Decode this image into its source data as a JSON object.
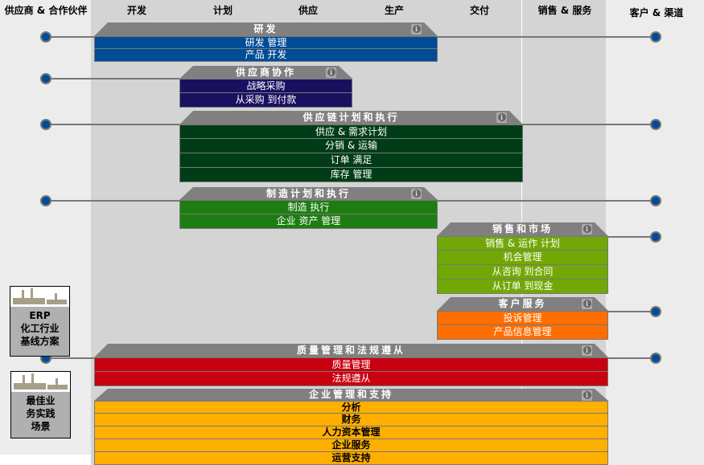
{
  "columns": [
    "供应商 & 合作伙伴",
    "开发",
    "计划",
    "供应",
    "生产",
    "交付",
    "销售 & 服务",
    "客户 & 渠道"
  ],
  "blocks": [
    {
      "title": "研发",
      "color": "#004c97",
      "text_color": "#ffffff",
      "rows": [
        "研发 管理",
        "产品 开发"
      ]
    },
    {
      "title": "供应商协作",
      "color": "#1a1060",
      "text_color": "#ffffff",
      "rows": [
        "战略采购",
        "从采购 到付款"
      ]
    },
    {
      "title": "供应链计划和执行",
      "color": "#003d17",
      "text_color": "#ffffff",
      "rows": [
        "供应 & 需求计划",
        "分销 & 运输",
        "订单 满足",
        "库存 管理"
      ]
    },
    {
      "title": "制造计划和执行",
      "color": "#1e7d12",
      "text_color": "#ffffff",
      "rows": [
        "制造 执行",
        "企业 资产 管理"
      ]
    },
    {
      "title": "销售和市场",
      "color": "#72a805",
      "text_color": "#ffffff",
      "rows": [
        "销售 & 运作 计划",
        "机会管理",
        "从咨询 到合同",
        "从订单 到现金"
      ]
    },
    {
      "title": "客户服务",
      "color": "#ff6e00",
      "text_color": "#ffffff",
      "rows": [
        "投诉管理",
        "产品信息管理"
      ]
    },
    {
      "title": "质量管理和法规遵从",
      "color": "#c8000f",
      "text_color": "#ffffff",
      "rows": [
        "质量管理",
        "法规遵从"
      ]
    },
    {
      "title": "企业管理和支持",
      "color": "#ffaf00",
      "text_color": "#000000",
      "rows": [
        "分析",
        "财务",
        "人力资本管理",
        "企业服务",
        "运营支持"
      ]
    }
  ],
  "cards": [
    {
      "lines": [
        "ERP",
        "化工行业",
        "基线方案"
      ]
    },
    {
      "lines": [
        "最佳业",
        "务实践",
        "场景"
      ]
    }
  ],
  "icons": {
    "info": "info-icon",
    "connector": "connector-dot"
  },
  "accent": "#004c97"
}
